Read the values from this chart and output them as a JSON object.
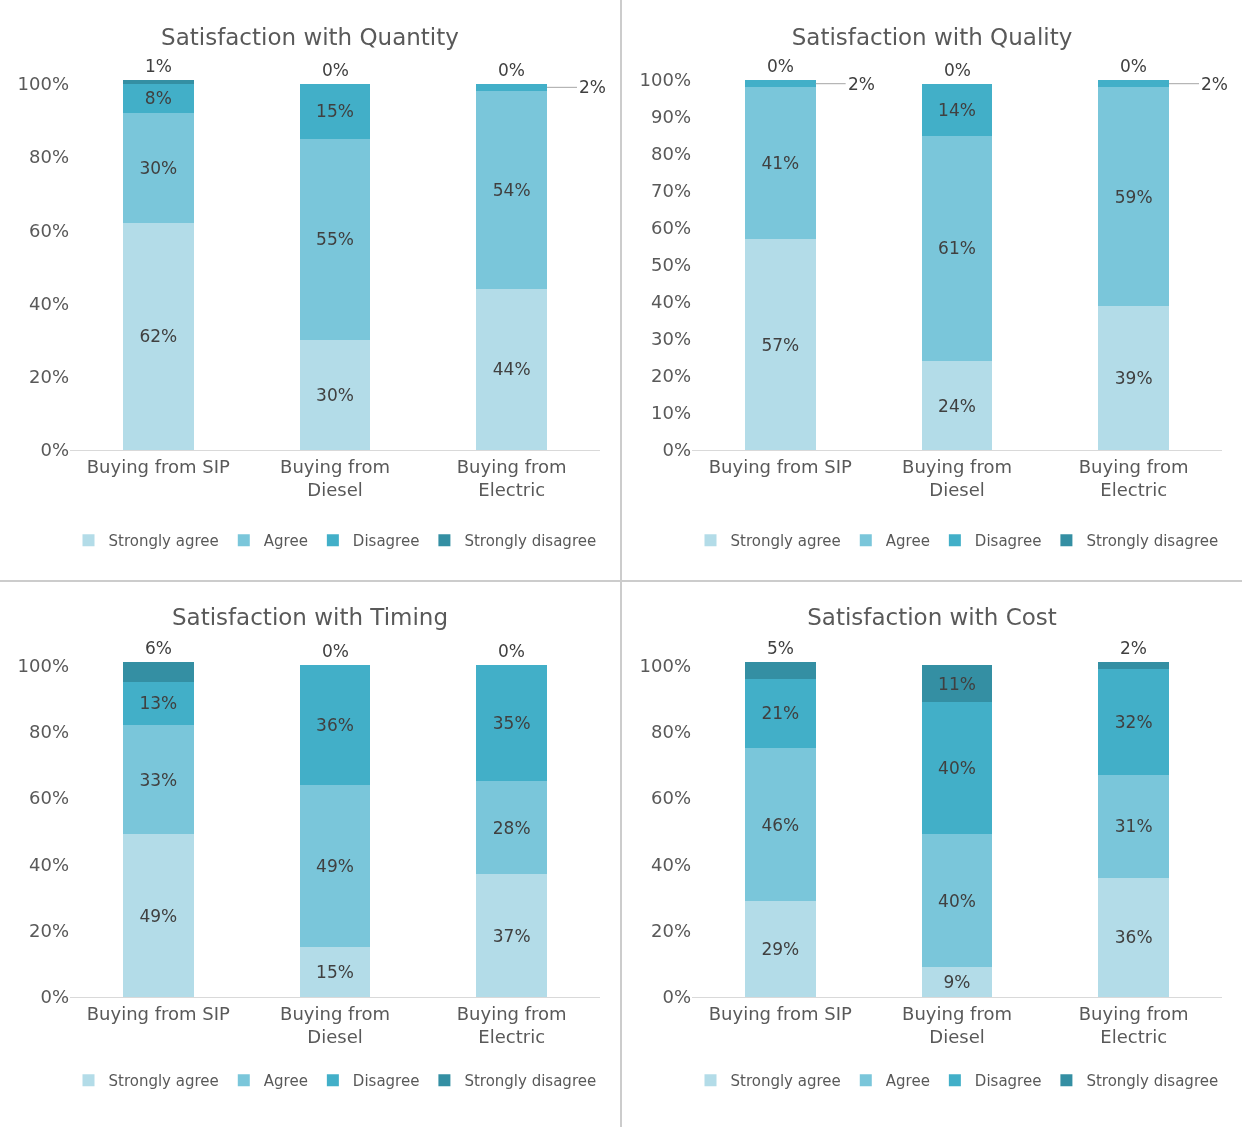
{
  "chart_data": [
    {
      "type": "bar",
      "title": "Satisfaction with Quantity",
      "categories": [
        "Buying from SIP",
        "Buying from Diesel",
        "Buying from Electric"
      ],
      "stacked": true,
      "ylim": [
        0,
        101
      ],
      "yticks": [
        {
          "value": 0,
          "label": "0%"
        },
        {
          "value": 20,
          "label": "20%"
        },
        {
          "value": 40,
          "label": "40%"
        },
        {
          "value": 60,
          "label": "60%"
        },
        {
          "value": 80,
          "label": "80%"
        },
        {
          "value": 100,
          "label": "100%"
        }
      ],
      "grid": false,
      "legend": "bottom",
      "series": [
        {
          "name": "Strongly agree",
          "color": "#b3dce8",
          "values": [
            62,
            30,
            44
          ],
          "value_labels": [
            "62%",
            "30%",
            "44%"
          ]
        },
        {
          "name": "Agree",
          "color": "#7ac6da",
          "values": [
            30,
            55,
            54
          ],
          "value_labels": [
            "30%",
            "55%",
            "54%"
          ]
        },
        {
          "name": "Disagree",
          "color": "#42afc8",
          "values": [
            8,
            15,
            2
          ],
          "value_labels": [
            "8%",
            "15%",
            "2%"
          ]
        },
        {
          "name": "Strongly disagree",
          "color": "#348fa3",
          "values": [
            1,
            0,
            0
          ],
          "value_labels": [
            "1%",
            "0%",
            "0%"
          ]
        }
      ]
    },
    {
      "type": "bar",
      "title": "Satisfaction with Quality",
      "categories": [
        "Buying from SIP",
        "Buying from Diesel",
        "Buying from Electric"
      ],
      "stacked": true,
      "ylim": [
        0,
        100
      ],
      "yticks": [
        {
          "value": 0,
          "label": "0%"
        },
        {
          "value": 10,
          "label": "10%"
        },
        {
          "value": 20,
          "label": "20%"
        },
        {
          "value": 30,
          "label": "30%"
        },
        {
          "value": 40,
          "label": "40%"
        },
        {
          "value": 50,
          "label": "50%"
        },
        {
          "value": 60,
          "label": "60%"
        },
        {
          "value": 70,
          "label": "70%"
        },
        {
          "value": 80,
          "label": "80%"
        },
        {
          "value": 90,
          "label": "90%"
        },
        {
          "value": 100,
          "label": "100%"
        }
      ],
      "grid": false,
      "legend": "bottom",
      "series": [
        {
          "name": "Strongly agree",
          "color": "#b3dce8",
          "values": [
            57,
            24,
            39
          ],
          "value_labels": [
            "57%",
            "24%",
            "39%"
          ]
        },
        {
          "name": "Agree",
          "color": "#7ac6da",
          "values": [
            41,
            61,
            59
          ],
          "value_labels": [
            "41%",
            "61%",
            "59%"
          ]
        },
        {
          "name": "Disagree",
          "color": "#42afc8",
          "values": [
            2,
            14,
            2
          ],
          "value_labels": [
            "2%",
            "14%",
            "2%"
          ]
        },
        {
          "name": "Strongly disagree",
          "color": "#348fa3",
          "values": [
            0,
            0,
            0
          ],
          "value_labels": [
            "0%",
            "0%",
            "0%"
          ]
        }
      ]
    },
    {
      "type": "bar",
      "title": "Satisfaction with Timing",
      "categories": [
        "Buying from SIP",
        "Buying from Diesel",
        "Buying from Electric"
      ],
      "stacked": true,
      "ylim": [
        0,
        101
      ],
      "yticks": [
        {
          "value": 0,
          "label": "0%"
        },
        {
          "value": 20,
          "label": "20%"
        },
        {
          "value": 40,
          "label": "40%"
        },
        {
          "value": 60,
          "label": "60%"
        },
        {
          "value": 80,
          "label": "80%"
        },
        {
          "value": 100,
          "label": "100%"
        }
      ],
      "grid": false,
      "legend": "bottom",
      "series": [
        {
          "name": "Strongly agree",
          "color": "#b3dce8",
          "values": [
            49,
            15,
            37
          ],
          "value_labels": [
            "49%",
            "15%",
            "37%"
          ]
        },
        {
          "name": "Agree",
          "color": "#7ac6da",
          "values": [
            33,
            49,
            28
          ],
          "value_labels": [
            "33%",
            "49%",
            "28%"
          ]
        },
        {
          "name": "Disagree",
          "color": "#42afc8",
          "values": [
            13,
            36,
            35
          ],
          "value_labels": [
            "13%",
            "36%",
            "35%"
          ]
        },
        {
          "name": "Strongly disagree",
          "color": "#348fa3",
          "values": [
            6,
            0,
            0
          ],
          "value_labels": [
            "6%",
            "0%",
            "0%"
          ]
        }
      ]
    },
    {
      "type": "bar",
      "title": "Satisfaction with Cost",
      "categories": [
        "Buying from SIP",
        "Buying from Diesel",
        "Buying from Electric"
      ],
      "stacked": true,
      "ylim": [
        0,
        101
      ],
      "yticks": [
        {
          "value": 0,
          "label": "0%"
        },
        {
          "value": 20,
          "label": "20%"
        },
        {
          "value": 40,
          "label": "40%"
        },
        {
          "value": 60,
          "label": "60%"
        },
        {
          "value": 80,
          "label": "80%"
        },
        {
          "value": 100,
          "label": "100%"
        }
      ],
      "grid": false,
      "legend": "bottom",
      "series": [
        {
          "name": "Strongly agree",
          "color": "#b3dce8",
          "values": [
            29,
            9,
            36
          ],
          "value_labels": [
            "29%",
            "9%",
            "36%"
          ]
        },
        {
          "name": "Agree",
          "color": "#7ac6da",
          "values": [
            46,
            40,
            31
          ],
          "value_labels": [
            "46%",
            "40%",
            "31%"
          ]
        },
        {
          "name": "Disagree",
          "color": "#42afc8",
          "values": [
            21,
            40,
            32
          ],
          "value_labels": [
            "21%",
            "40%",
            "32%"
          ]
        },
        {
          "name": "Strongly disagree",
          "color": "#348fa3",
          "values": [
            5,
            11,
            2
          ],
          "value_labels": [
            "5%",
            "11%",
            "2%"
          ]
        }
      ]
    }
  ]
}
